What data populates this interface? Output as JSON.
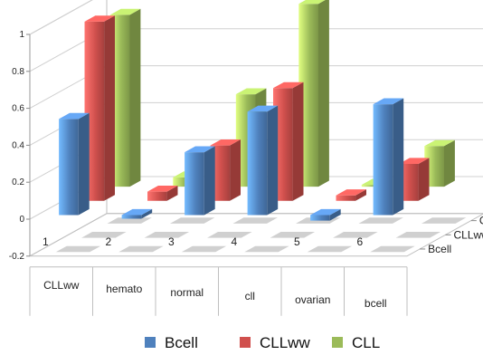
{
  "chart_data": {
    "type": "bar",
    "subtype": "3d-clustered-column",
    "title": "",
    "xlabel": "",
    "ylabel": "",
    "ylim": [
      -0.2,
      1
    ],
    "yticks": [
      "-0.2",
      "0",
      "0.2",
      "0.4",
      "0.6",
      "0.8",
      "1"
    ],
    "x_numbers": [
      "1",
      "2",
      "3",
      "4",
      "5",
      "6"
    ],
    "categories": [
      "CLLww",
      "hemato",
      "normal",
      "cll",
      "ovarian",
      "bcell"
    ],
    "depth_labels": [
      "Bcell",
      "CLLww",
      "CLL"
    ],
    "series": [
      {
        "name": "Bcell",
        "color": "#4f81bd",
        "values": [
          0.52,
          -0.02,
          0.34,
          0.56,
          -0.03,
          0.6
        ]
      },
      {
        "name": "CLLww",
        "color": "#d0504d",
        "values": [
          0.97,
          0.05,
          0.3,
          0.61,
          0.03,
          0.2
        ]
      },
      {
        "name": "CLL",
        "color": "#9bbb59",
        "values": [
          0.93,
          0.05,
          0.5,
          0.99,
          0.01,
          0.22
        ]
      }
    ],
    "grid": true,
    "legend_position": "bottom"
  }
}
